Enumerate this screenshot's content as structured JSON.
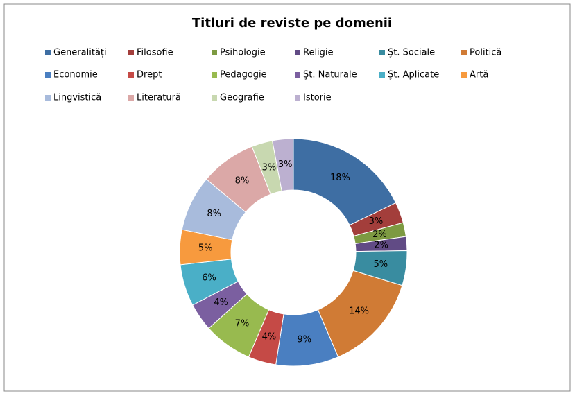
{
  "chart_data": {
    "type": "donut",
    "title": "Titluri de reviste pe domenii",
    "categories": [
      "Generalități",
      "Filosofie",
      "Psihologie",
      "Religie",
      "Şt. Sociale",
      "Politică",
      "Economie",
      "Drept",
      "Pedagogie",
      "Şt. Naturale",
      "Şt. Aplicate",
      "Artă",
      "Lingvistică",
      "Literatură",
      "Geografie",
      "Istorie"
    ],
    "values": [
      18,
      3,
      2,
      2,
      5,
      14,
      9,
      4,
      7,
      4,
      6,
      5,
      8,
      8,
      3,
      3
    ],
    "value_labels": [
      "18%",
      "3%",
      "2%",
      "2%",
      "5%",
      "14%",
      "9%",
      "4%",
      "7%",
      "4%",
      "6%",
      "5%",
      "8%",
      "8%",
      "3%",
      "3%"
    ],
    "colors": [
      "#3e6ea3",
      "#a33e3b",
      "#7d9a42",
      "#614b85",
      "#398ca0",
      "#d07b35",
      "#4a7fc1",
      "#c54a46",
      "#98ba4f",
      "#7b5fa0",
      "#4aafc7",
      "#f79a3e",
      "#a8bbdc",
      "#dba8a7",
      "#c8d8b0",
      "#bcb0d0"
    ],
    "legend": "top"
  }
}
